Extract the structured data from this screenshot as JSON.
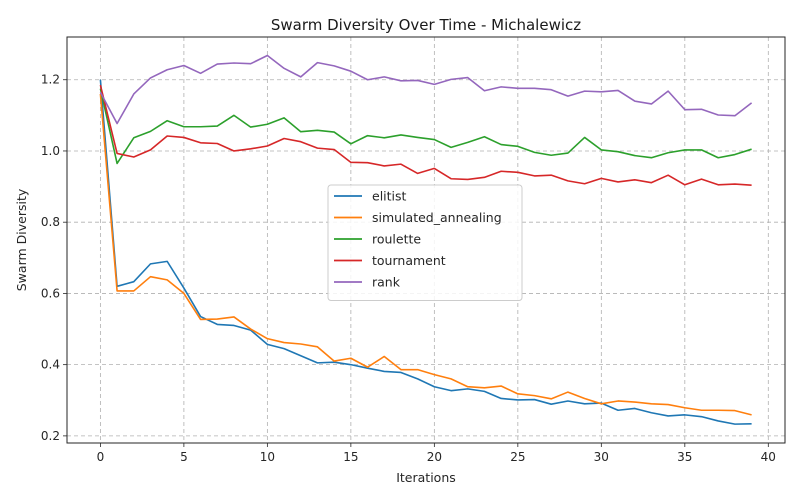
{
  "chart_data": {
    "type": "line",
    "title": "Swarm Diversity Over Time - Michalewicz",
    "xlabel": "Iterations",
    "ylabel": "Swarm Diversity",
    "xlim": [
      -2,
      41
    ],
    "ylim": [
      0.18,
      1.32
    ],
    "xticks": [
      0,
      5,
      10,
      15,
      20,
      25,
      30,
      35,
      40
    ],
    "yticks": [
      0.2,
      0.4,
      0.6,
      0.8,
      1.0,
      1.2
    ],
    "grid": true,
    "legend_position": "center",
    "x": [
      0,
      1,
      2,
      3,
      4,
      5,
      6,
      7,
      8,
      9,
      10,
      11,
      12,
      13,
      14,
      15,
      16,
      17,
      18,
      19,
      20,
      21,
      22,
      23,
      24,
      25,
      26,
      27,
      28,
      29,
      30,
      31,
      32,
      33,
      34,
      35,
      36,
      37,
      38,
      39
    ],
    "series": [
      {
        "name": "elitist",
        "color": "#1f77b4",
        "values": [
          1.2,
          0.62,
          0.633,
          0.683,
          0.69,
          0.615,
          0.535,
          0.513,
          0.51,
          0.497,
          0.457,
          0.445,
          0.425,
          0.405,
          0.407,
          0.4,
          0.39,
          0.381,
          0.378,
          0.36,
          0.338,
          0.327,
          0.332,
          0.325,
          0.305,
          0.301,
          0.302,
          0.289,
          0.298,
          0.29,
          0.292,
          0.272,
          0.277,
          0.265,
          0.256,
          0.259,
          0.254,
          0.242,
          0.233,
          0.234
        ]
      },
      {
        "name": "simulated_annealing",
        "color": "#ff7f0e",
        "values": [
          1.16,
          0.607,
          0.607,
          0.647,
          0.638,
          0.6,
          0.527,
          0.528,
          0.534,
          0.5,
          0.473,
          0.462,
          0.458,
          0.45,
          0.41,
          0.418,
          0.393,
          0.423,
          0.386,
          0.386,
          0.372,
          0.36,
          0.338,
          0.335,
          0.34,
          0.318,
          0.313,
          0.304,
          0.323,
          0.305,
          0.29,
          0.298,
          0.295,
          0.29,
          0.288,
          0.279,
          0.272,
          0.272,
          0.271,
          0.259
        ]
      },
      {
        "name": "roulette",
        "color": "#2ca02c",
        "values": [
          1.175,
          0.965,
          1.037,
          1.055,
          1.085,
          1.068,
          1.068,
          1.07,
          1.1,
          1.067,
          1.075,
          1.093,
          1.054,
          1.058,
          1.053,
          1.02,
          1.043,
          1.037,
          1.045,
          1.038,
          1.032,
          1.01,
          1.024,
          1.04,
          1.018,
          1.013,
          0.996,
          0.988,
          0.994,
          1.038,
          1.003,
          0.998,
          0.987,
          0.981,
          0.995,
          1.003,
          1.003,
          0.981,
          0.99,
          1.005
        ]
      },
      {
        "name": "tournament",
        "color": "#d62728",
        "values": [
          1.185,
          0.993,
          0.983,
          1.003,
          1.042,
          1.038,
          1.023,
          1.021,
          1.0,
          1.006,
          1.014,
          1.035,
          1.026,
          1.008,
          1.004,
          0.968,
          0.967,
          0.958,
          0.963,
          0.937,
          0.951,
          0.922,
          0.92,
          0.926,
          0.943,
          0.94,
          0.93,
          0.932,
          0.916,
          0.908,
          0.923,
          0.913,
          0.919,
          0.911,
          0.932,
          0.905,
          0.921,
          0.905,
          0.907,
          0.904
        ]
      },
      {
        "name": "rank",
        "color": "#9467bd",
        "values": [
          1.165,
          1.077,
          1.16,
          1.205,
          1.228,
          1.24,
          1.218,
          1.244,
          1.247,
          1.245,
          1.268,
          1.232,
          1.208,
          1.248,
          1.239,
          1.224,
          1.2,
          1.208,
          1.197,
          1.198,
          1.187,
          1.201,
          1.206,
          1.169,
          1.18,
          1.176,
          1.176,
          1.172,
          1.154,
          1.168,
          1.166,
          1.17,
          1.14,
          1.132,
          1.168,
          1.116,
          1.117,
          1.101,
          1.099,
          1.135
        ]
      }
    ]
  }
}
